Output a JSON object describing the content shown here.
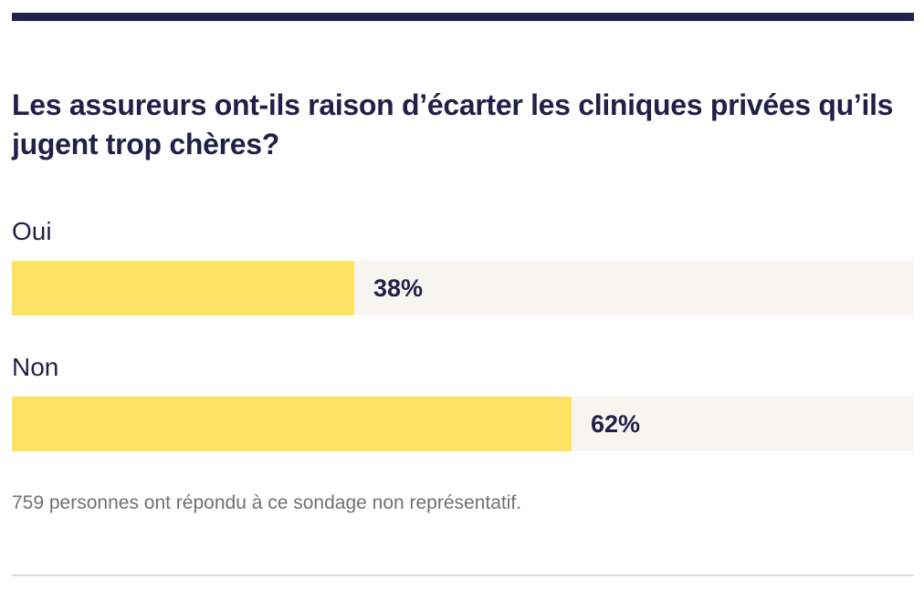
{
  "poll": {
    "question": "Les assureurs ont-ils raison d’écarter les cliniques privées qu’ils jugent trop chères?",
    "footnote": "759 personnes ont répondu à ce sondage non représentatif."
  },
  "colors": {
    "navy": "#1f2148",
    "bar_fill": "#fde264",
    "bar_track": "#f7f5f0",
    "footnote": "#707070"
  },
  "chart_data": {
    "type": "bar",
    "orientation": "horizontal",
    "categories": [
      "Oui",
      "Non"
    ],
    "values": [
      38,
      62
    ],
    "value_labels": [
      "38%",
      "62%"
    ],
    "unit": "%",
    "xlim": [
      0,
      100
    ]
  }
}
